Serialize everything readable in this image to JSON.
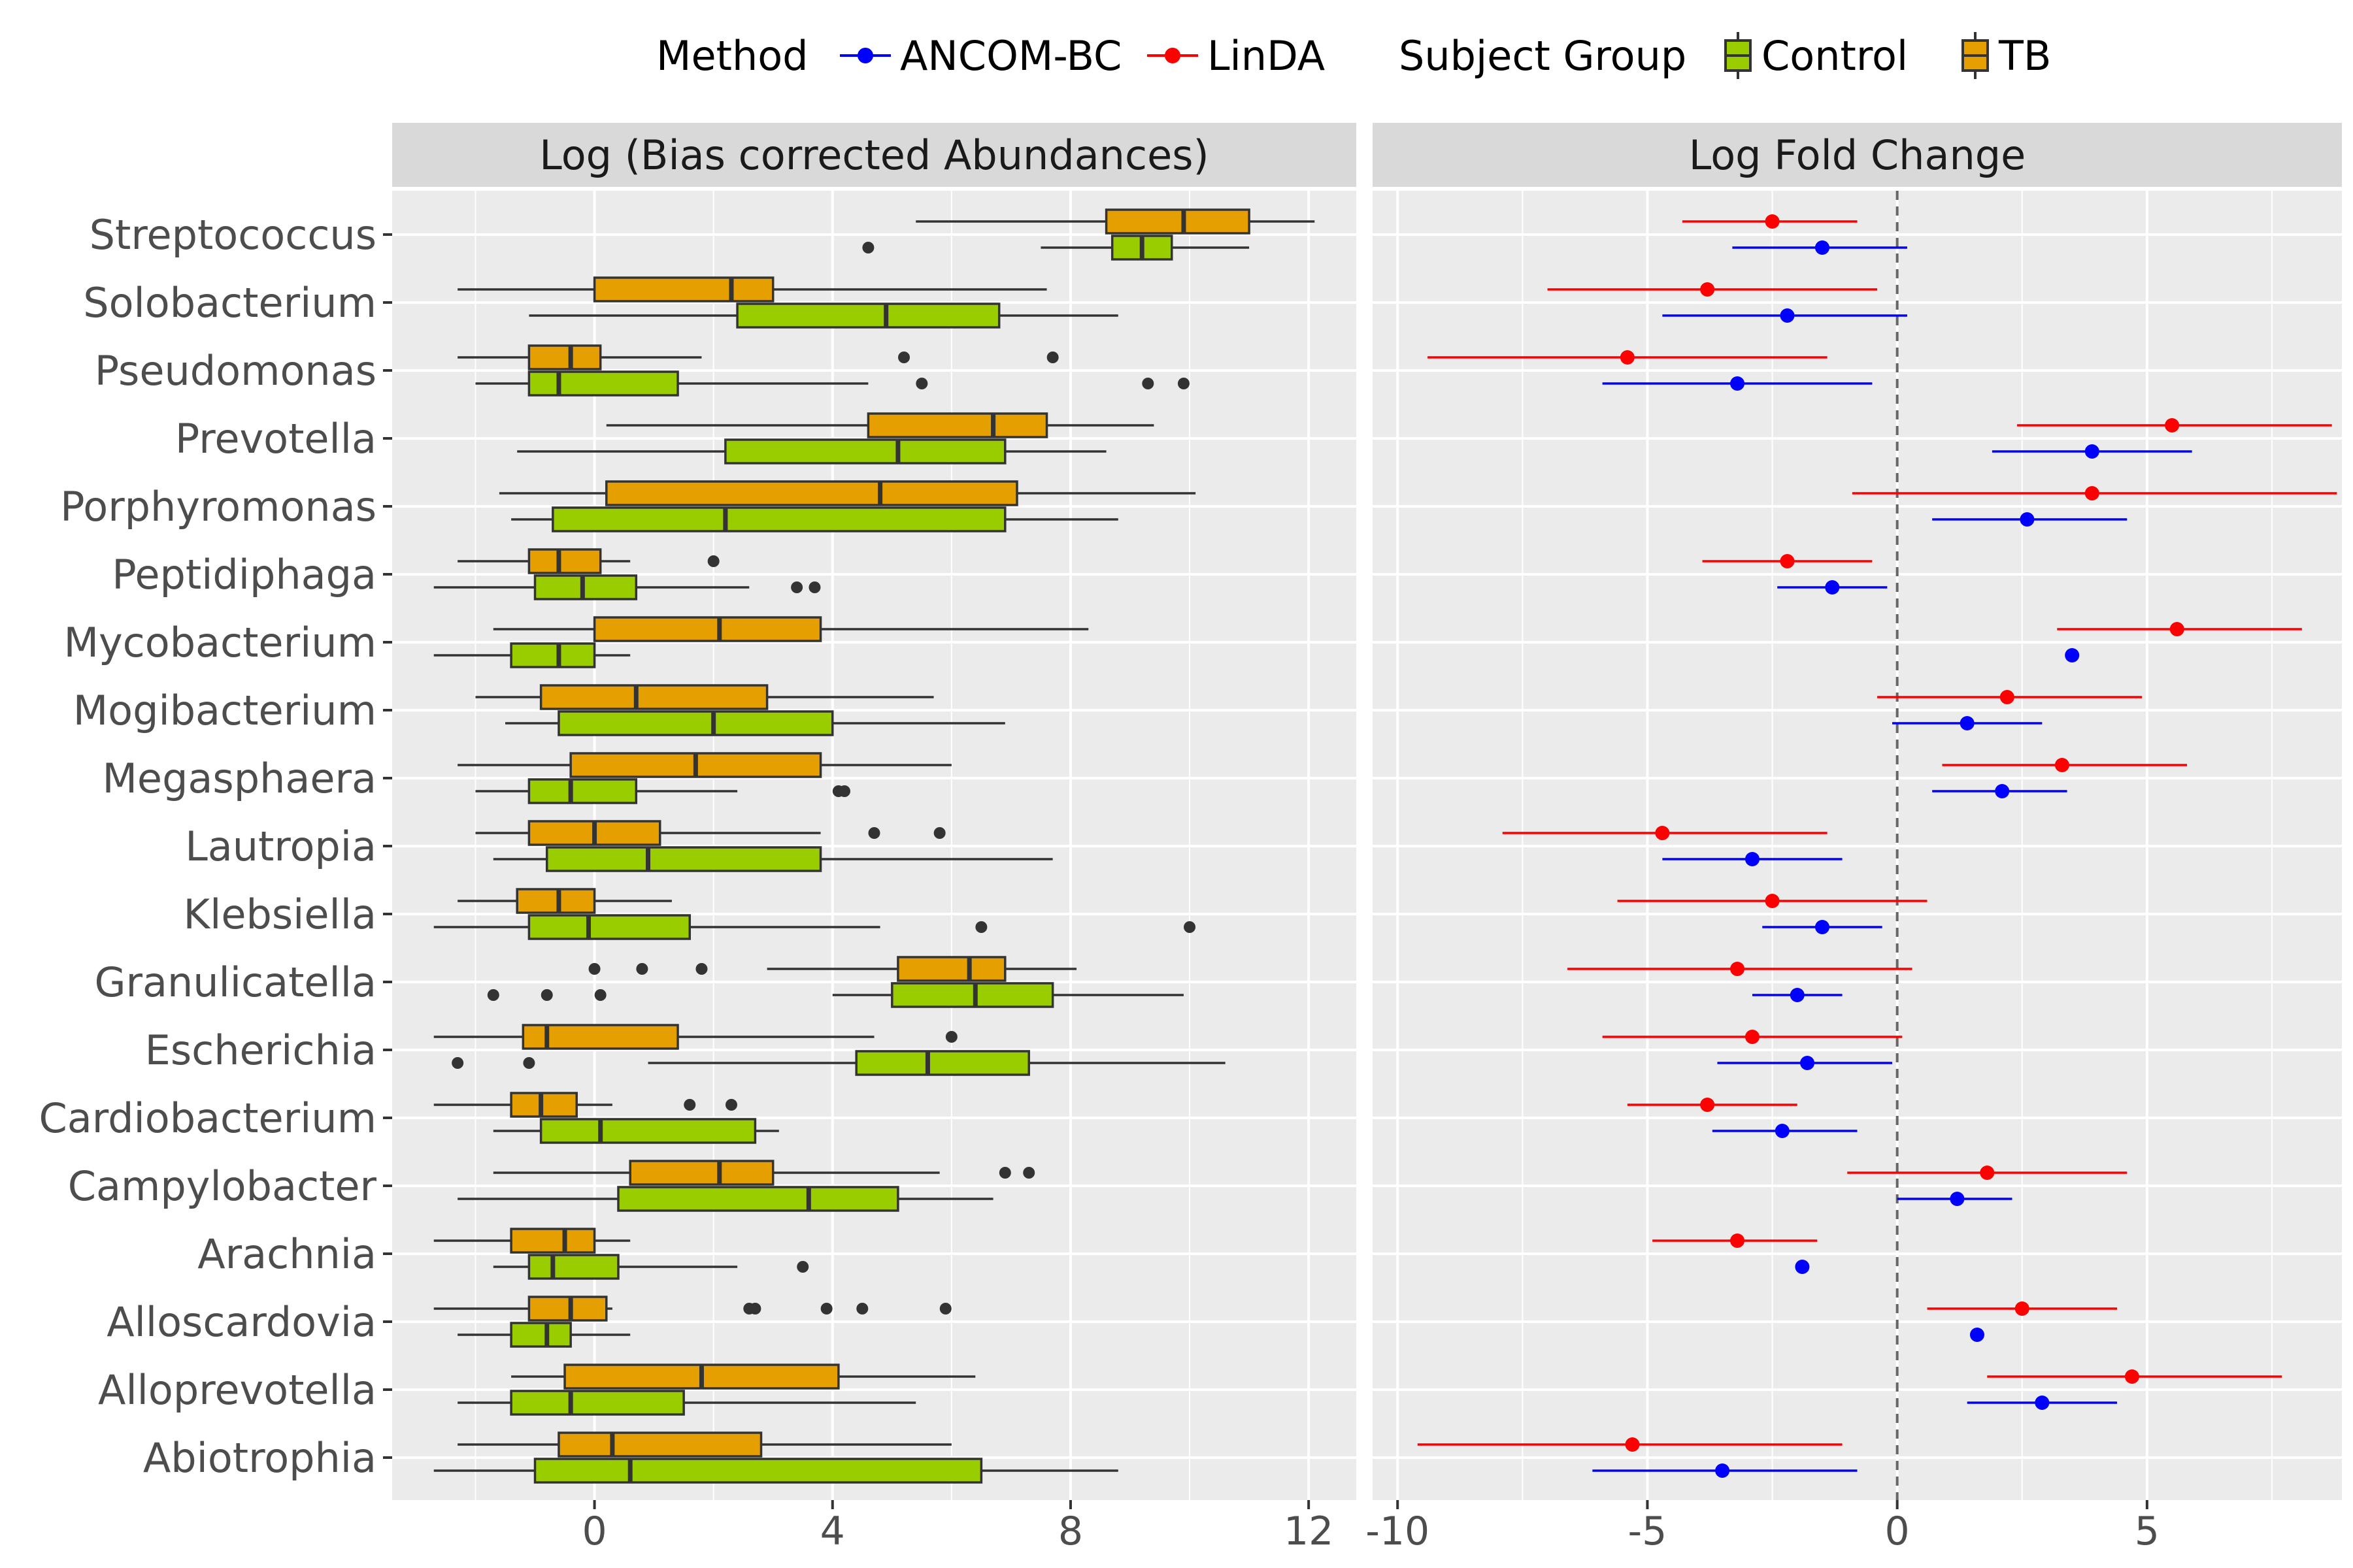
{
  "legend": {
    "method_title": "Method",
    "methods": [
      {
        "name": "ANCOM-BC",
        "color": "#0000ff"
      },
      {
        "name": "LinDA",
        "color": "#ff0000"
      }
    ],
    "group_title": "Subject Group",
    "groups": [
      {
        "name": "Control",
        "color": "#9acd00"
      },
      {
        "name": "TB",
        "color": "#e69f00"
      }
    ]
  },
  "colors": {
    "panel_bg": "#ebebeb",
    "strip_bg": "#d9d9d9",
    "grid": "#ffffff",
    "box_outline": "#333333",
    "zero_line": "#666666"
  },
  "chart_data": [
    {
      "type": "boxplot",
      "title": "Log (Bias corrected Abundances)",
      "xticks": [
        "0",
        "4",
        "8",
        "12"
      ],
      "xtick_values": [
        0,
        4,
        8,
        12
      ],
      "xlim": [
        -3.4,
        12.8
      ],
      "series": [
        {
          "name": "Control",
          "boxes": {
            "Streptococcus": {
              "wl": 7.5,
              "q1": 8.7,
              "med": 9.2,
              "q3": 9.7,
              "wh": 11.0,
              "out": [
                4.6
              ]
            },
            "Solobacterium": {
              "wl": -1.1,
              "q1": 2.4,
              "med": 4.9,
              "q3": 6.8,
              "wh": 8.8,
              "out": []
            },
            "Pseudomonas": {
              "wl": -2.0,
              "q1": -1.1,
              "med": -0.6,
              "q3": 1.4,
              "wh": 4.6,
              "out": [
                5.5,
                9.3,
                9.9
              ]
            },
            "Prevotella": {
              "wl": -1.3,
              "q1": 2.2,
              "med": 5.1,
              "q3": 6.9,
              "wh": 8.6,
              "out": []
            },
            "Porphyromonas": {
              "wl": -1.4,
              "q1": -0.7,
              "med": 2.2,
              "q3": 6.9,
              "wh": 8.8,
              "out": []
            },
            "Peptidiphaga": {
              "wl": -2.7,
              "q1": -1.0,
              "med": -0.2,
              "q3": 0.7,
              "wh": 2.6,
              "out": [
                3.4,
                3.7
              ]
            },
            "Mycobacterium": {
              "wl": -2.7,
              "q1": -1.4,
              "med": -0.6,
              "q3": 0.0,
              "wh": 0.6,
              "out": []
            },
            "Mogibacterium": {
              "wl": -1.5,
              "q1": -0.6,
              "med": 2.0,
              "q3": 4.0,
              "wh": 6.9,
              "out": []
            },
            "Megasphaera": {
              "wl": -2.0,
              "q1": -1.1,
              "med": -0.4,
              "q3": 0.7,
              "wh": 2.4,
              "out": [
                4.1,
                4.2
              ]
            },
            "Lautropia": {
              "wl": -1.7,
              "q1": -0.8,
              "med": 0.9,
              "q3": 3.8,
              "wh": 7.7,
              "out": []
            },
            "Klebsiella": {
              "wl": -2.7,
              "q1": -1.1,
              "med": -0.1,
              "q3": 1.6,
              "wh": 4.8,
              "out": [
                6.5,
                10.0
              ]
            },
            "Granulicatella": {
              "wl": 4.0,
              "q1": 5.0,
              "med": 6.4,
              "q3": 7.7,
              "wh": 9.9,
              "out": [
                -1.7,
                -0.8,
                0.1
              ]
            },
            "Escherichia": {
              "wl": 0.9,
              "q1": 4.4,
              "med": 5.6,
              "q3": 7.3,
              "wh": 10.6,
              "out": [
                -2.3,
                -1.1
              ]
            },
            "Cardiobacterium": {
              "wl": -1.7,
              "q1": -0.9,
              "med": 0.1,
              "q3": 2.7,
              "wh": 3.1,
              "out": []
            },
            "Campylobacter": {
              "wl": -2.3,
              "q1": 0.4,
              "med": 3.6,
              "q3": 5.1,
              "wh": 6.7,
              "out": []
            },
            "Arachnia": {
              "wl": -1.7,
              "q1": -1.1,
              "med": -0.7,
              "q3": 0.4,
              "wh": 2.4,
              "out": [
                3.5
              ]
            },
            "Alloscardovia": {
              "wl": -2.3,
              "q1": -1.4,
              "med": -0.8,
              "q3": -0.4,
              "wh": 0.6,
              "out": []
            },
            "Alloprevotella": {
              "wl": -2.3,
              "q1": -1.4,
              "med": -0.4,
              "q3": 1.5,
              "wh": 5.4,
              "out": []
            },
            "Abiotrophia": {
              "wl": -2.7,
              "q1": -1.0,
              "med": 0.6,
              "q3": 6.5,
              "wh": 8.8,
              "out": []
            }
          }
        },
        {
          "name": "TB",
          "boxes": {
            "Streptococcus": {
              "wl": 5.4,
              "q1": 8.6,
              "med": 9.9,
              "q3": 11.0,
              "wh": 12.1,
              "out": []
            },
            "Solobacterium": {
              "wl": -2.3,
              "q1": 0.0,
              "med": 2.3,
              "q3": 3.0,
              "wh": 7.6,
              "out": []
            },
            "Pseudomonas": {
              "wl": -2.3,
              "q1": -1.1,
              "med": -0.4,
              "q3": 0.1,
              "wh": 1.8,
              "out": [
                5.2,
                7.7
              ]
            },
            "Prevotella": {
              "wl": 0.2,
              "q1": 4.6,
              "med": 6.7,
              "q3": 7.6,
              "wh": 9.4,
              "out": []
            },
            "Porphyromonas": {
              "wl": -1.6,
              "q1": 0.2,
              "med": 4.8,
              "q3": 7.1,
              "wh": 10.1,
              "out": []
            },
            "Peptidiphaga": {
              "wl": -2.3,
              "q1": -1.1,
              "med": -0.6,
              "q3": 0.1,
              "wh": 0.6,
              "out": [
                2.0
              ]
            },
            "Mycobacterium": {
              "wl": -1.7,
              "q1": 0.0,
              "med": 2.1,
              "q3": 3.8,
              "wh": 8.3,
              "out": []
            },
            "Mogibacterium": {
              "wl": -2.0,
              "q1": -0.9,
              "med": 0.7,
              "q3": 2.9,
              "wh": 5.7,
              "out": []
            },
            "Megasphaera": {
              "wl": -2.3,
              "q1": -0.4,
              "med": 1.7,
              "q3": 3.8,
              "wh": 6.0,
              "out": []
            },
            "Lautropia": {
              "wl": -2.0,
              "q1": -1.1,
              "med": 0.0,
              "q3": 1.1,
              "wh": 3.8,
              "out": [
                4.7,
                5.8
              ]
            },
            "Klebsiella": {
              "wl": -2.3,
              "q1": -1.3,
              "med": -0.6,
              "q3": 0.0,
              "wh": 1.3,
              "out": []
            },
            "Granulicatella": {
              "wl": 2.9,
              "q1": 5.1,
              "med": 6.3,
              "q3": 6.9,
              "wh": 8.1,
              "out": [
                0.0,
                0.8,
                1.8
              ]
            },
            "Escherichia": {
              "wl": -2.7,
              "q1": -1.2,
              "med": -0.8,
              "q3": 1.4,
              "wh": 4.7,
              "out": [
                6.0
              ]
            },
            "Cardiobacterium": {
              "wl": -2.7,
              "q1": -1.4,
              "med": -0.9,
              "q3": -0.3,
              "wh": 0.3,
              "out": [
                1.6,
                2.3
              ]
            },
            "Campylobacter": {
              "wl": -1.7,
              "q1": 0.6,
              "med": 2.1,
              "q3": 3.0,
              "wh": 5.8,
              "out": [
                6.9,
                7.3
              ]
            },
            "Arachnia": {
              "wl": -2.7,
              "q1": -1.4,
              "med": -0.5,
              "q3": 0.0,
              "wh": 0.6,
              "out": []
            },
            "Alloscardovia": {
              "wl": -2.7,
              "q1": -1.1,
              "med": -0.4,
              "q3": 0.2,
              "wh": 0.3,
              "out": [
                2.6,
                2.7,
                3.9,
                4.5,
                5.9
              ]
            },
            "Alloprevotella": {
              "wl": -1.4,
              "q1": -0.5,
              "med": 1.8,
              "q3": 4.1,
              "wh": 6.4,
              "out": []
            },
            "Abiotrophia": {
              "wl": -2.3,
              "q1": -0.6,
              "med": 0.3,
              "q3": 2.8,
              "wh": 6.0,
              "out": []
            }
          }
        }
      ]
    },
    {
      "type": "errorbar",
      "title": "Log Fold Change",
      "xticks": [
        "-10",
        "-5",
        "0",
        "5"
      ],
      "xtick_values": [
        -10,
        -5,
        0,
        5
      ],
      "xlim": [
        -10.5,
        8.9
      ],
      "reference_line": 0,
      "series": [
        {
          "name": "ANCOM-BC",
          "points": {
            "Streptococcus": [
              -1.5,
              -3.3,
              0.2
            ],
            "Solobacterium": [
              -2.2,
              -4.7,
              0.2
            ],
            "Pseudomonas": [
              -3.2,
              -5.9,
              -0.5
            ],
            "Prevotella": [
              3.9,
              1.9,
              5.9
            ],
            "Porphyromonas": [
              2.6,
              0.7,
              4.6
            ],
            "Peptidiphaga": [
              -1.3,
              -2.4,
              -0.2
            ],
            "Mycobacterium": [
              3.5,
              null,
              null
            ],
            "Mogibacterium": [
              1.4,
              -0.1,
              2.9
            ],
            "Megasphaera": [
              2.1,
              0.7,
              3.4
            ],
            "Lautropia": [
              -2.9,
              -4.7,
              -1.1
            ],
            "Klebsiella": [
              -1.5,
              -2.7,
              -0.3
            ],
            "Granulicatella": [
              -2.0,
              -2.9,
              -1.1
            ],
            "Escherichia": [
              -1.8,
              -3.6,
              -0.1
            ],
            "Cardiobacterium": [
              -2.3,
              -3.7,
              -0.8
            ],
            "Campylobacter": [
              1.2,
              0.0,
              2.3
            ],
            "Arachnia": [
              -1.9,
              null,
              null
            ],
            "Alloscardovia": [
              1.6,
              null,
              null
            ],
            "Alloprevotella": [
              2.9,
              1.4,
              4.4
            ],
            "Abiotrophia": [
              -3.5,
              -6.1,
              -0.8
            ]
          }
        },
        {
          "name": "LinDA",
          "points": {
            "Streptococcus": [
              -2.5,
              -4.3,
              -0.8
            ],
            "Solobacterium": [
              -3.8,
              -7.0,
              -0.4
            ],
            "Pseudomonas": [
              -5.4,
              -9.4,
              -1.4
            ],
            "Prevotella": [
              5.5,
              2.4,
              8.7
            ],
            "Porphyromonas": [
              3.9,
              -0.9,
              8.8
            ],
            "Peptidiphaga": [
              -2.2,
              -3.9,
              -0.5
            ],
            "Mycobacterium": [
              5.6,
              3.2,
              8.1
            ],
            "Mogibacterium": [
              2.2,
              -0.4,
              4.9
            ],
            "Megasphaera": [
              3.3,
              0.9,
              5.8
            ],
            "Lautropia": [
              -4.7,
              -7.9,
              -1.4
            ],
            "Klebsiella": [
              -2.5,
              -5.6,
              0.6
            ],
            "Granulicatella": [
              -3.2,
              -6.6,
              0.3
            ],
            "Escherichia": [
              -2.9,
              -5.9,
              0.1
            ],
            "Cardiobacterium": [
              -3.8,
              -5.4,
              -2.0
            ],
            "Campylobacter": [
              1.8,
              -1.0,
              4.6
            ],
            "Arachnia": [
              -3.2,
              -4.9,
              -1.6
            ],
            "Alloscardovia": [
              2.5,
              0.6,
              4.4
            ],
            "Alloprevotella": [
              4.7,
              1.8,
              7.7
            ],
            "Abiotrophia": [
              -5.3,
              -9.6,
              -1.1
            ]
          }
        }
      ]
    }
  ],
  "categories": [
    "Streptococcus",
    "Solobacterium",
    "Pseudomonas",
    "Prevotella",
    "Porphyromonas",
    "Peptidiphaga",
    "Mycobacterium",
    "Mogibacterium",
    "Megasphaera",
    "Lautropia",
    "Klebsiella",
    "Granulicatella",
    "Escherichia",
    "Cardiobacterium",
    "Campylobacter",
    "Arachnia",
    "Alloscardovia",
    "Alloprevotella",
    "Abiotrophia"
  ]
}
